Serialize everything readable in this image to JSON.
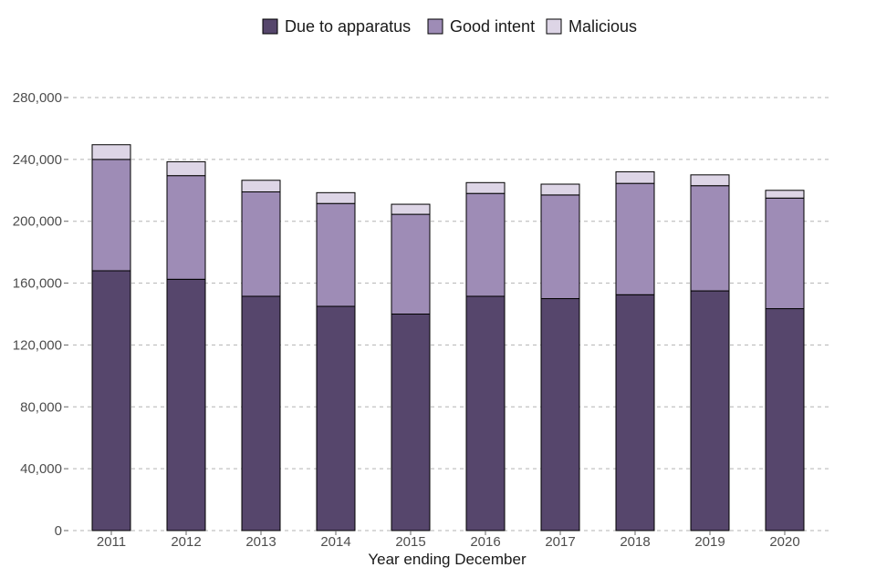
{
  "chart_data": {
    "type": "bar",
    "stacked": true,
    "title": "",
    "xlabel": "Year ending December",
    "ylabel": "",
    "ylim": [
      0,
      280000
    ],
    "yticks": [
      0,
      40000,
      80000,
      120000,
      160000,
      200000,
      240000,
      280000
    ],
    "ytick_labels": [
      "0",
      "40,000",
      "80,000",
      "120,000",
      "160,000",
      "200,000",
      "240,000",
      "280,000"
    ],
    "grid": true,
    "legend_position": "top",
    "categories": [
      "2011",
      "2012",
      "2013",
      "2014",
      "2015",
      "2016",
      "2017",
      "2018",
      "2019",
      "2020"
    ],
    "series": [
      {
        "name": "Due to apparatus",
        "color": "#56466c",
        "values": [
          168000,
          162500,
          151500,
          145000,
          140000,
          151500,
          150000,
          152500,
          155000,
          143500
        ]
      },
      {
        "name": "Good intent",
        "color": "#9e8cb6",
        "values": [
          72000,
          67000,
          67500,
          66500,
          64500,
          66500,
          67000,
          72000,
          68000,
          71500
        ]
      },
      {
        "name": "Malicious",
        "color": "#ddd5e6",
        "values": [
          9500,
          9000,
          7500,
          7000,
          6500,
          7000,
          7000,
          7500,
          7000,
          5000
        ]
      }
    ]
  }
}
